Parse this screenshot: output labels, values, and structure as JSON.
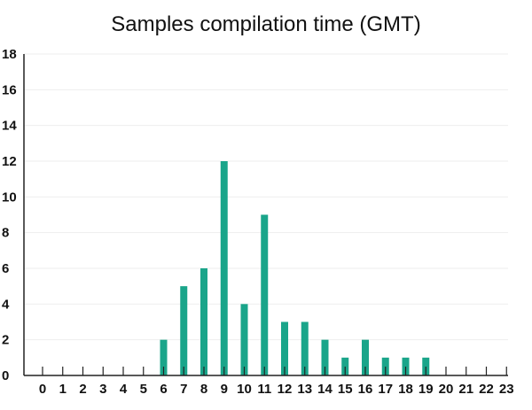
{
  "chart_data": {
    "type": "bar",
    "title": "Samples compilation time (GMT)",
    "xlabel": "",
    "ylabel": "",
    "categories": [
      "0",
      "1",
      "2",
      "3",
      "4",
      "5",
      "6",
      "7",
      "8",
      "9",
      "10",
      "11",
      "12",
      "13",
      "14",
      "15",
      "16",
      "17",
      "18",
      "19",
      "20",
      "21",
      "22",
      "23"
    ],
    "values": [
      0,
      0,
      0,
      0,
      0,
      0,
      2,
      5,
      6,
      12,
      4,
      9,
      3,
      3,
      2,
      1,
      2,
      1,
      1,
      1,
      0,
      0,
      0,
      0
    ],
    "ylim": [
      0,
      18
    ],
    "yticks": [
      0,
      2,
      4,
      6,
      8,
      10,
      12,
      14,
      16,
      18
    ],
    "grid": true,
    "legend": "none",
    "bar_color": "#1aa58a"
  }
}
